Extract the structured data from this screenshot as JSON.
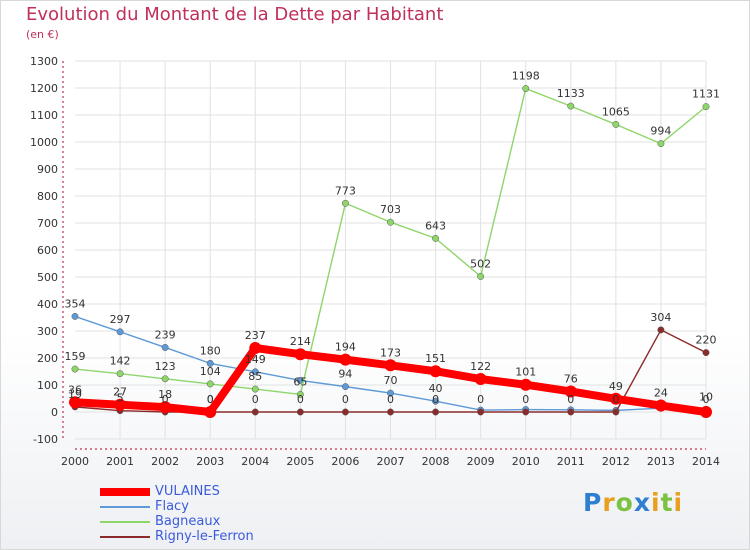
{
  "header": {
    "title": "Evolution du Montant de la Dette par Habitant",
    "unit": "(en €)"
  },
  "colors": {
    "title": "#c0305a",
    "legend_text": "#3b5bdb"
  },
  "logo": {
    "text": "Proxiti",
    "letters": [
      {
        "ch": "P",
        "color": "#2f7fd1"
      },
      {
        "ch": "r",
        "color": "#e8a020"
      },
      {
        "ch": "o",
        "color": "#7cc242"
      },
      {
        "ch": "x",
        "color": "#2f7fd1"
      },
      {
        "ch": "i",
        "color": "#e8a020"
      },
      {
        "ch": "t",
        "color": "#7cc242"
      },
      {
        "ch": "i",
        "color": "#e8a020"
      }
    ]
  },
  "chart_data": {
    "type": "line",
    "title": "Evolution du Montant de la Dette par Habitant",
    "ylabel": "(en €)",
    "xlabel": "",
    "ylim": [
      -100,
      1300
    ],
    "yticks": [
      -100,
      0,
      100,
      200,
      300,
      400,
      500,
      600,
      700,
      800,
      900,
      1000,
      1100,
      1200,
      1300
    ],
    "grid": true,
    "legend": "bottom-left",
    "categories": [
      "2000",
      "2001",
      "2002",
      "2003",
      "2004",
      "2005",
      "2006",
      "2007",
      "2008",
      "2009",
      "2010",
      "2011",
      "2012",
      "2013",
      "2014"
    ],
    "series": [
      {
        "name": "VULAINES",
        "color": "#ff0000",
        "emphasis": true,
        "values": [
          36,
          27,
          18,
          0,
          237,
          214,
          194,
          173,
          151,
          122,
          101,
          76,
          49,
          24,
          0
        ],
        "labels": [
          "36",
          "27",
          "18",
          "0",
          "237",
          "214",
          "194",
          "173",
          "151",
          "122",
          "101",
          "76",
          "49",
          "24",
          "0"
        ]
      },
      {
        "name": "Flacy",
        "color": "#5d9ad6",
        "values": [
          354,
          297,
          239,
          180,
          149,
          117,
          94,
          70,
          40,
          7,
          9,
          8,
          6,
          14,
          10
        ],
        "labels": [
          "354",
          "297",
          "239",
          "180",
          "149",
          "",
          "94",
          "70",
          "40",
          "",
          "",
          "",
          "",
          "",
          "10"
        ]
      },
      {
        "name": "Bagneaux",
        "color": "#8ed66a",
        "values": [
          159,
          142,
          123,
          104,
          85,
          65,
          773,
          703,
          643,
          502,
          1198,
          1133,
          1065,
          994,
          1131
        ],
        "labels": [
          "159",
          "142",
          "123",
          "104",
          "85",
          "65",
          "773",
          "703",
          "643",
          "502",
          "1198",
          "1133",
          "1065",
          "994",
          "1131"
        ]
      },
      {
        "name": "Rigny-le-Ferron",
        "color": "#8b2b2b",
        "values": [
          19,
          5,
          0,
          0,
          0,
          0,
          0,
          0,
          0,
          0,
          0,
          0,
          0,
          304,
          220
        ],
        "labels": [
          "19",
          "5",
          "0",
          "0",
          "0",
          "0",
          "0",
          "0",
          "0",
          "0",
          "0",
          "0",
          "0",
          "304",
          "220"
        ]
      }
    ]
  }
}
